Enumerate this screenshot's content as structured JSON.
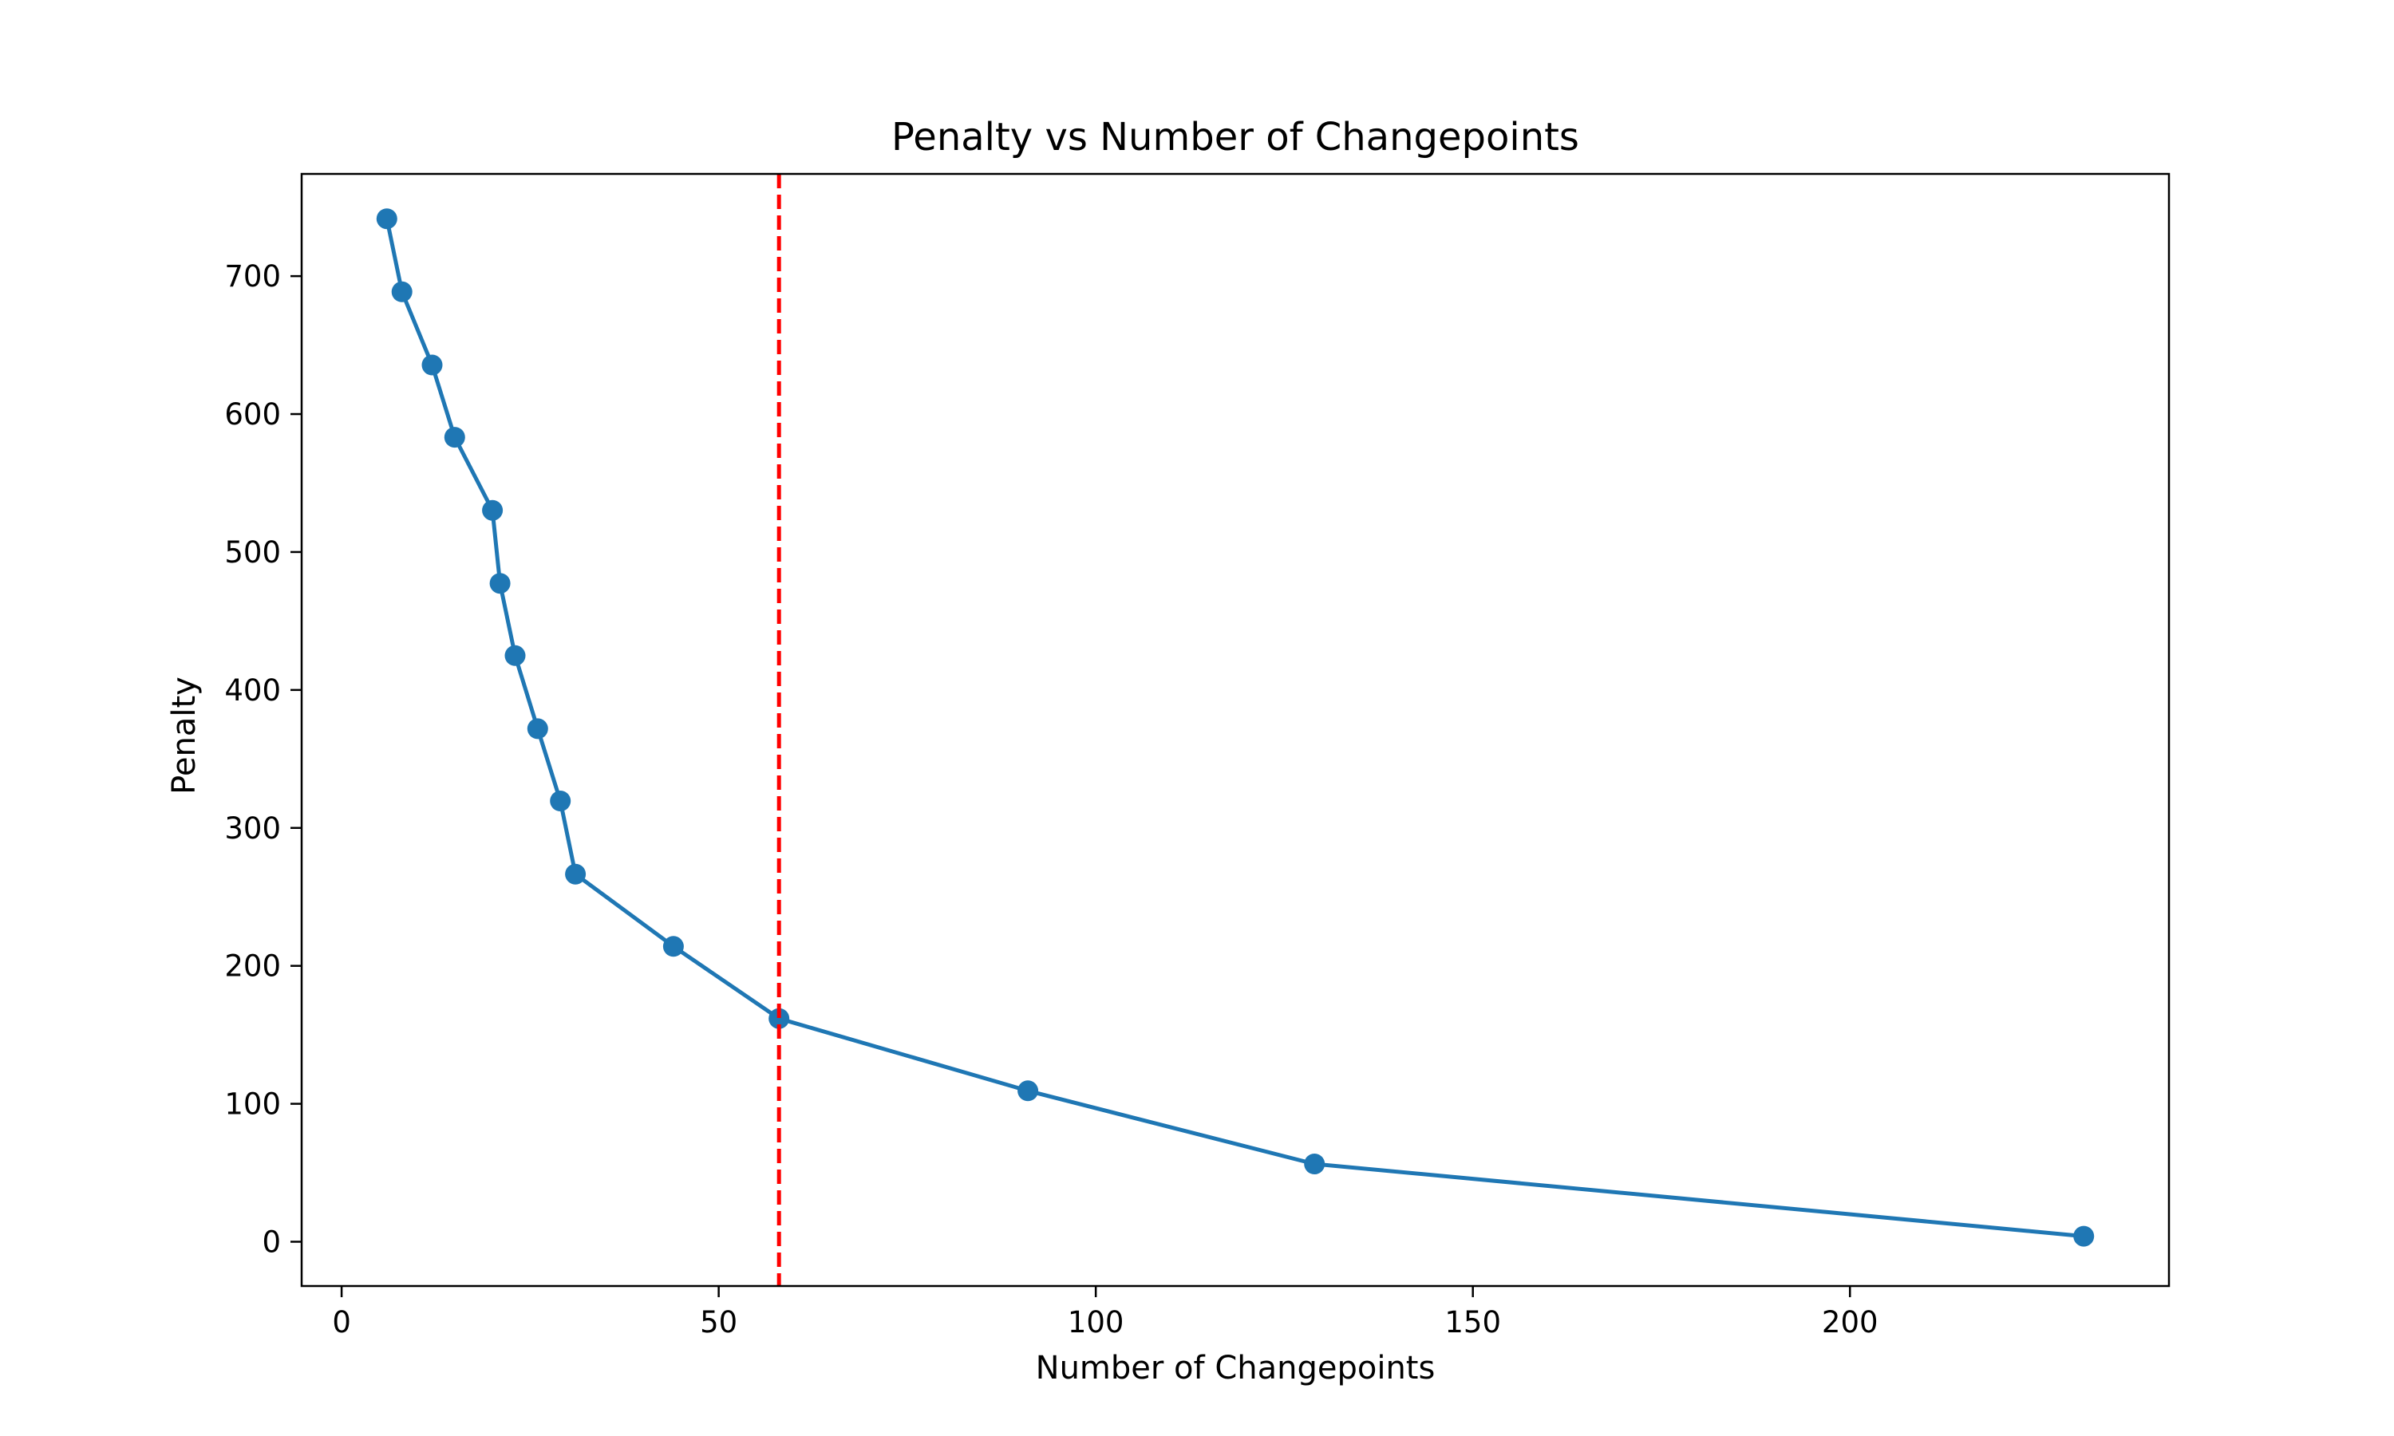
{
  "chart_data": {
    "type": "line",
    "title": "Penalty vs Number of Changepoints",
    "xlabel": "Number of Changepoints",
    "ylabel": "Penalty",
    "xlim": [
      -5.3,
      242.3
    ],
    "ylim": [
      -32.1,
      774.1
    ],
    "xticks": [
      0,
      50,
      100,
      150,
      200
    ],
    "yticks": [
      0,
      100,
      200,
      300,
      400,
      500,
      600,
      700
    ],
    "grid": false,
    "series": [
      {
        "color": "#1f77b4",
        "marker": "circle",
        "points": [
          {
            "x": 6,
            "y": 741.6
          },
          {
            "x": 8,
            "y": 688.6
          },
          {
            "x": 12,
            "y": 635.6
          },
          {
            "x": 15,
            "y": 583.2
          },
          {
            "x": 20,
            "y": 530.2
          },
          {
            "x": 21,
            "y": 477.3
          },
          {
            "x": 23,
            "y": 424.9
          },
          {
            "x": 26,
            "y": 371.9
          },
          {
            "x": 29,
            "y": 319.5
          },
          {
            "x": 31,
            "y": 266.5
          },
          {
            "x": 44,
            "y": 214.1
          },
          {
            "x": 58,
            "y": 161.8
          },
          {
            "x": 91,
            "y": 109.4
          },
          {
            "x": 129,
            "y": 56.4
          },
          {
            "x": 231,
            "y": 4.0
          }
        ]
      }
    ],
    "vlines": [
      {
        "x": 58,
        "color": "#ff0000",
        "style": "dashed"
      }
    ]
  }
}
